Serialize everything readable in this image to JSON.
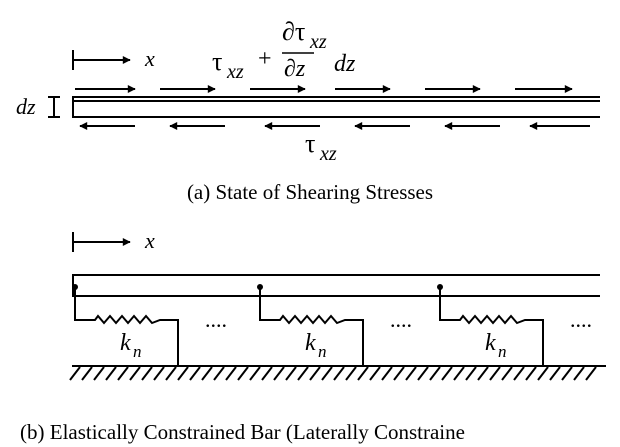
{
  "panel_a": {
    "x_label": "x",
    "top_stress": {
      "tau": "τ",
      "sub": "xz",
      "plus": "+",
      "num_tau": "∂τ",
      "num_sub": "xz",
      "den": "∂z",
      "dz": "dz"
    },
    "dz_label": "dz",
    "bottom_stress": {
      "tau": "τ",
      "sub": "xz"
    },
    "caption": "(a) State of Shearing Stresses"
  },
  "panel_b": {
    "x_label": "x",
    "springs": [
      {
        "k": "k",
        "sub": "n",
        "dots": "...."
      },
      {
        "k": "k",
        "sub": "n",
        "dots": "...."
      },
      {
        "k": "k",
        "sub": "n",
        "dots": "...."
      }
    ],
    "caption": "(b) Elastically Constrained Bar (Laterally Constraine"
  }
}
